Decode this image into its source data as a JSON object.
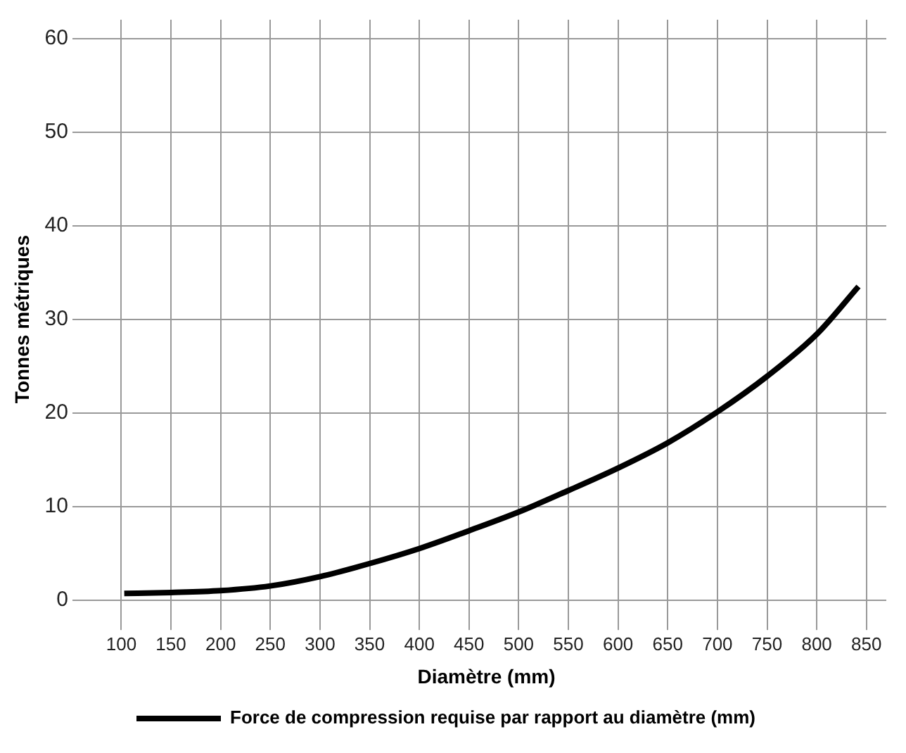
{
  "chart_data": {
    "type": "line",
    "xlabel": "Diamètre (mm)",
    "ylabel": "Tonnes métriques",
    "x": [
      103,
      150,
      200,
      250,
      300,
      350,
      400,
      450,
      500,
      550,
      600,
      650,
      700,
      750,
      800,
      842
    ],
    "series": [
      {
        "name": "Force de compression requise par rapport au diamètre (mm)",
        "color": "#000000",
        "values": [
          0.7,
          0.8,
          1.0,
          1.5,
          2.5,
          3.9,
          5.5,
          7.4,
          9.4,
          11.7,
          14.1,
          16.8,
          20.1,
          23.9,
          28.4,
          33.5
        ]
      }
    ],
    "xlim": [
      65,
      870
    ],
    "xticks": [
      100,
      150,
      200,
      250,
      300,
      350,
      400,
      450,
      500,
      550,
      600,
      650,
      700,
      750,
      800,
      850
    ],
    "ylim": [
      -2,
      62
    ],
    "yticks": [
      0,
      10,
      20,
      30,
      40,
      50,
      60
    ],
    "grid": true,
    "legend": "bottom",
    "marker": "none",
    "line_style": "solid"
  }
}
